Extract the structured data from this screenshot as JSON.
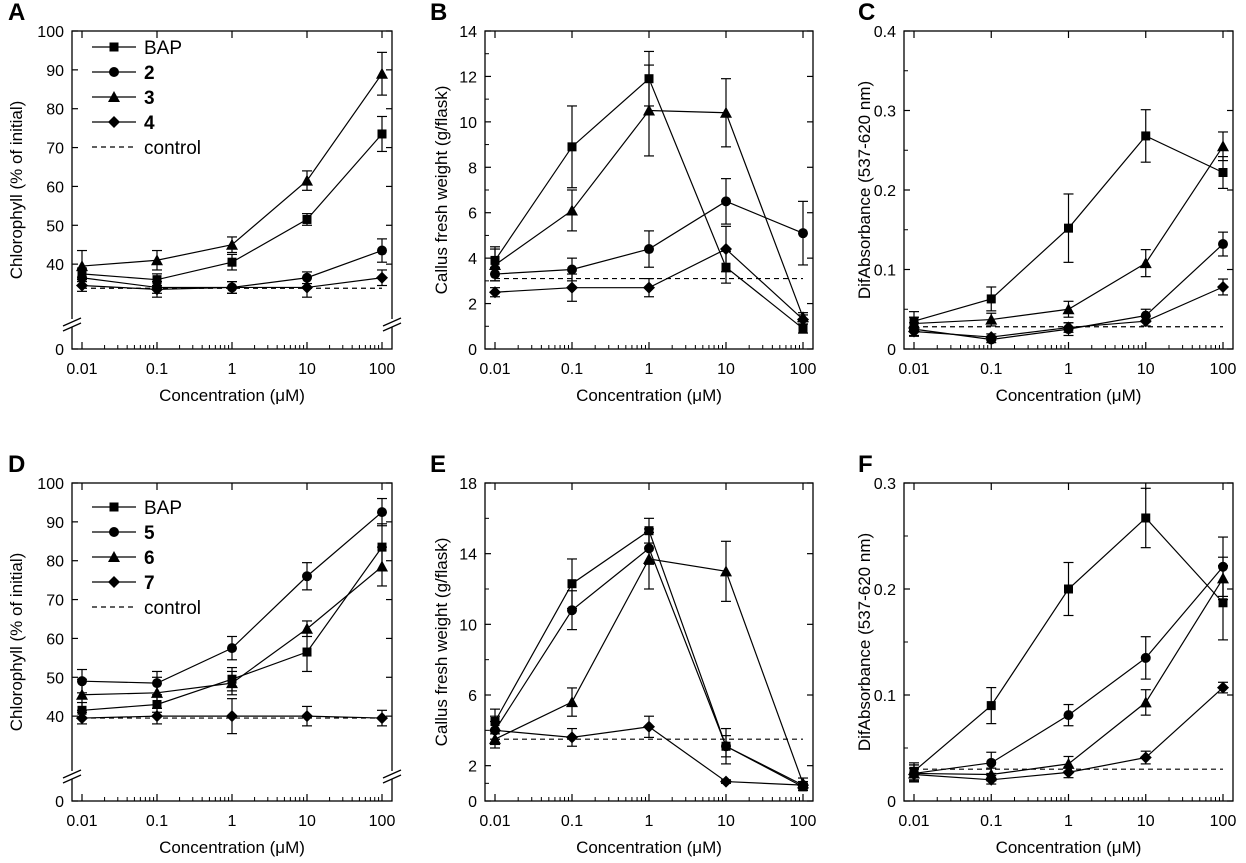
{
  "figure": {
    "type": "multi-panel line chart with error bars",
    "x_axis_scale": "log"
  },
  "chart_data": [
    {
      "panel": "A",
      "type": "line",
      "xlabel": "Concentration (μM)",
      "ylabel": "Chlorophyll (% of initial)",
      "x": [
        0.01,
        0.1,
        1,
        10,
        100
      ],
      "xticks": [
        "0.01",
        "0.1",
        "1",
        "10",
        "100"
      ],
      "ylim": [
        30,
        100
      ],
      "yticks": [
        "0",
        "40",
        "50",
        "60",
        "70",
        "80",
        "90",
        "100"
      ],
      "axis_break": true,
      "control": 33.8,
      "legend": {
        "labels": [
          "BAP",
          "2",
          "3",
          "4",
          "control"
        ]
      },
      "series": [
        {
          "name": "BAP",
          "marker": "square",
          "values": [
            37.5,
            36.0,
            40.5,
            51.5,
            73.5
          ],
          "errors": [
            1.5,
            1.5,
            2.0,
            1.5,
            4.5
          ]
        },
        {
          "name": "2",
          "marker": "circle",
          "values": [
            36.5,
            34.0,
            34.0,
            36.5,
            43.5
          ],
          "errors": [
            2.0,
            1.5,
            1.5,
            1.5,
            3.0
          ]
        },
        {
          "name": "3",
          "marker": "triangle",
          "values": [
            39.5,
            41.0,
            45.0,
            61.5,
            89.0
          ],
          "errors": [
            4.0,
            2.5,
            2.0,
            2.5,
            5.5
          ]
        },
        {
          "name": "4",
          "marker": "diamond",
          "values": [
            34.5,
            33.5,
            34.0,
            34.0,
            36.5
          ],
          "errors": [
            1.5,
            2.0,
            1.5,
            2.5,
            2.0
          ]
        }
      ]
    },
    {
      "panel": "B",
      "type": "line",
      "xlabel": "Concentration (μM)",
      "ylabel": "Callus fresh weight (g/flask)",
      "x": [
        0.01,
        0.1,
        1,
        10,
        100
      ],
      "xticks": [
        "0.01",
        "0.1",
        "1",
        "10",
        "100"
      ],
      "ylim": [
        0,
        14
      ],
      "yticks": [
        "0",
        "2",
        "4",
        "6",
        "8",
        "10",
        "12",
        "14"
      ],
      "control": 3.1,
      "series": [
        {
          "name": "BAP",
          "marker": "square",
          "values": [
            3.9,
            8.9,
            11.9,
            3.6,
            0.9
          ],
          "errors": [
            0.6,
            1.8,
            1.2,
            0.7,
            0.2
          ]
        },
        {
          "name": "2",
          "marker": "circle",
          "values": [
            3.3,
            3.5,
            4.4,
            6.5,
            5.1
          ],
          "errors": [
            0.3,
            0.5,
            0.8,
            1.0,
            1.4
          ]
        },
        {
          "name": "3",
          "marker": "triangle",
          "values": [
            3.7,
            6.1,
            10.5,
            10.4,
            1.4
          ],
          "errors": [
            0.7,
            0.9,
            2.0,
            1.5,
            0.2
          ]
        },
        {
          "name": "4",
          "marker": "diamond",
          "values": [
            2.5,
            2.7,
            2.7,
            4.4,
            1.3
          ],
          "errors": [
            0.2,
            0.6,
            0.4,
            1.0,
            0.2
          ]
        }
      ]
    },
    {
      "panel": "C",
      "type": "line",
      "xlabel": "Concentration (μM)",
      "ylabel": "DifAbsorbance (537-620 nm)",
      "x": [
        0.01,
        0.1,
        1,
        10,
        100
      ],
      "xticks": [
        "0.01",
        "0.1",
        "1",
        "10",
        "100"
      ],
      "ylim": [
        0,
        0.4
      ],
      "yticks": [
        "0",
        "0.1",
        "0.2",
        "0.3",
        "0.4"
      ],
      "control": 0.028,
      "series": [
        {
          "name": "BAP",
          "marker": "square",
          "values": [
            0.035,
            0.063,
            0.152,
            0.268,
            0.222
          ],
          "errors": [
            0.012,
            0.015,
            0.043,
            0.033,
            0.02
          ]
        },
        {
          "name": "2",
          "marker": "circle",
          "values": [
            0.025,
            0.012,
            0.025,
            0.042,
            0.132
          ],
          "errors": [
            0.008,
            0.004,
            0.008,
            0.008,
            0.015
          ]
        },
        {
          "name": "3",
          "marker": "triangle",
          "values": [
            0.032,
            0.037,
            0.05,
            0.108,
            0.255
          ],
          "errors": [
            0.008,
            0.008,
            0.01,
            0.017,
            0.018
          ]
        },
        {
          "name": "4",
          "marker": "diamond",
          "values": [
            0.022,
            0.015,
            0.027,
            0.035,
            0.078
          ],
          "errors": [
            0.006,
            0.004,
            0.006,
            0.006,
            0.01
          ]
        }
      ]
    },
    {
      "panel": "D",
      "type": "line",
      "xlabel": "Concentration (μM)",
      "ylabel": "Chlorophyll (% of initial)",
      "x": [
        0.01,
        0.1,
        1,
        10,
        100
      ],
      "xticks": [
        "0.01",
        "0.1",
        "1",
        "10",
        "100"
      ],
      "ylim": [
        30,
        100
      ],
      "yticks": [
        "0",
        "40",
        "50",
        "60",
        "70",
        "80",
        "90",
        "100"
      ],
      "axis_break": true,
      "control": 39.5,
      "legend": {
        "labels": [
          "BAP",
          "5",
          "6",
          "7",
          "control"
        ]
      },
      "series": [
        {
          "name": "BAP",
          "marker": "square",
          "values": [
            41.5,
            43.0,
            49.5,
            56.5,
            83.5
          ],
          "errors": [
            2.0,
            2.0,
            3.0,
            5.0,
            6.0
          ]
        },
        {
          "name": "5",
          "marker": "circle",
          "values": [
            49.0,
            48.5,
            57.5,
            76.0,
            92.5
          ],
          "errors": [
            3.0,
            3.0,
            3.0,
            3.5,
            3.5
          ]
        },
        {
          "name": "6",
          "marker": "triangle",
          "values": [
            45.5,
            46.0,
            48.5,
            62.5,
            78.5
          ],
          "errors": [
            4.0,
            4.0,
            3.0,
            2.0,
            5.0
          ]
        },
        {
          "name": "7",
          "marker": "diamond",
          "values": [
            39.5,
            40.0,
            40.0,
            40.0,
            39.5
          ],
          "errors": [
            1.5,
            2.0,
            4.5,
            2.5,
            2.0
          ]
        }
      ]
    },
    {
      "panel": "E",
      "type": "line",
      "xlabel": "Concentration (μM)",
      "ylabel": "Callus fresh weight (g/flask)",
      "x": [
        0.01,
        0.1,
        1,
        10,
        100
      ],
      "xticks": [
        "0.01",
        "0.1",
        "1",
        "10",
        "100"
      ],
      "ylim": [
        0,
        18
      ],
      "yticks": [
        "0",
        "2",
        "6",
        "10",
        "14",
        "18"
      ],
      "control": 3.5,
      "series": [
        {
          "name": "BAP",
          "marker": "square",
          "values": [
            4.5,
            12.3,
            15.3,
            3.1,
            0.8
          ],
          "errors": [
            0.7,
            1.4,
            0.7,
            1.0,
            0.2
          ]
        },
        {
          "name": "5",
          "marker": "circle",
          "values": [
            4.0,
            10.8,
            14.3,
            3.1,
            0.9
          ],
          "errors": [
            0.8,
            1.1,
            0.9,
            0.6,
            0.2
          ]
        },
        {
          "name": "6",
          "marker": "triangle",
          "values": [
            3.5,
            5.6,
            13.7,
            13.0,
            1.0
          ],
          "errors": [
            0.5,
            0.8,
            1.7,
            1.7,
            0.3
          ]
        },
        {
          "name": "7",
          "marker": "diamond",
          "values": [
            4.0,
            3.6,
            4.2,
            1.1,
            0.9
          ],
          "errors": [
            0.5,
            0.5,
            0.6,
            0.1,
            0.1
          ]
        }
      ]
    },
    {
      "panel": "F",
      "type": "line",
      "xlabel": "Concentration (μM)",
      "ylabel": "DifAbsorbance (537-620 nm)",
      "x": [
        0.01,
        0.1,
        1,
        10,
        100
      ],
      "xticks": [
        "0.01",
        "0.1",
        "1",
        "10",
        "100"
      ],
      "ylim": [
        0,
        0.3
      ],
      "yticks": [
        "0",
        "0.1",
        "0.2",
        "0.3"
      ],
      "control": 0.03,
      "series": [
        {
          "name": "BAP",
          "marker": "square",
          "values": [
            0.028,
            0.09,
            0.2,
            0.267,
            0.187
          ],
          "errors": [
            0.008,
            0.017,
            0.025,
            0.028,
            0.035
          ]
        },
        {
          "name": "5",
          "marker": "circle",
          "values": [
            0.026,
            0.036,
            0.081,
            0.135,
            0.221
          ],
          "errors": [
            0.008,
            0.01,
            0.01,
            0.02,
            0.028
          ]
        },
        {
          "name": "6",
          "marker": "triangle",
          "values": [
            0.026,
            0.025,
            0.035,
            0.093,
            0.21
          ],
          "errors": [
            0.008,
            0.006,
            0.007,
            0.012,
            0.02
          ]
        },
        {
          "name": "7",
          "marker": "diamond",
          "values": [
            0.025,
            0.02,
            0.027,
            0.041,
            0.107
          ],
          "errors": [
            0.006,
            0.004,
            0.005,
            0.006,
            0.005
          ]
        }
      ]
    }
  ]
}
